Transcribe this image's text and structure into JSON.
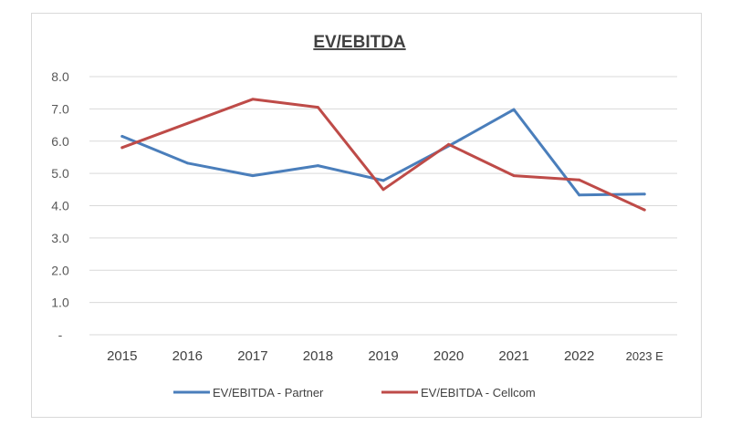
{
  "chart_data": {
    "type": "line",
    "title": "EV/EBITDA",
    "categories": [
      "2015",
      "2016",
      "2017",
      "2018",
      "2019",
      "2020",
      "2021",
      "2022",
      "2023 E"
    ],
    "y_tick_labels": [
      "-",
      "1.0",
      "2.0",
      "3.0",
      "4.0",
      "5.0",
      "6.0",
      "7.0",
      "8.0"
    ],
    "ylim": [
      0,
      8
    ],
    "grid": true,
    "legend_position": "bottom",
    "series": [
      {
        "name": "EV/EBITDA - Partner",
        "color": "#4a7ebb",
        "values": [
          6.15,
          5.32,
          4.93,
          5.24,
          4.78,
          5.85,
          6.98,
          4.33,
          4.36
        ]
      },
      {
        "name": "EV/EBITDA - Cellcom",
        "color": "#be4b48",
        "values": [
          5.8,
          6.55,
          7.3,
          7.05,
          4.5,
          5.9,
          4.93,
          4.8,
          3.87
        ]
      }
    ]
  }
}
